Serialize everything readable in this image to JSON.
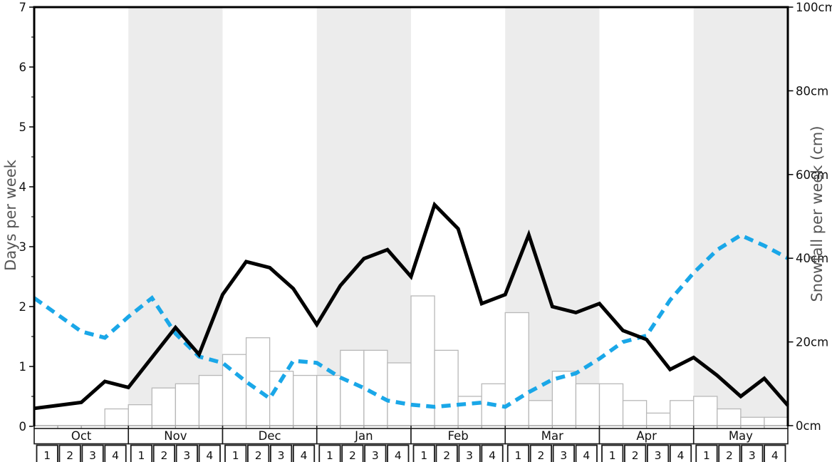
{
  "chart_data": {
    "type": "bar+line",
    "title": "",
    "left_axis": {
      "label": "Days per week",
      "min": 0,
      "max": 7,
      "tick_labels": [
        "0",
        "1",
        "2",
        "3",
        "4",
        "5",
        "6",
        "7"
      ]
    },
    "right_axis": {
      "label": "Snowfall per week (cm)",
      "min": 0,
      "max": 100,
      "tick_labels": [
        "0cm",
        "20cm",
        "40cm",
        "60cm",
        "80cm",
        "100cm"
      ]
    },
    "x_axis": {
      "months": [
        "Oct",
        "Nov",
        "Dec",
        "Jan",
        "Feb",
        "Mar",
        "Apr",
        "May"
      ],
      "weeks": [
        "1",
        "2",
        "3",
        "4"
      ],
      "shaded_months": [
        "Nov",
        "Jan",
        "Mar",
        "May"
      ]
    },
    "series": [
      {
        "name": "snowfall-per-week-bars",
        "type": "bar",
        "axis": "right",
        "unit": "cm",
        "values": [
          0,
          0,
          0,
          4,
          5,
          9,
          10,
          12,
          17,
          21,
          13,
          12,
          12,
          18,
          18,
          15,
          31,
          18,
          7,
          10,
          27,
          6,
          13,
          10,
          10,
          6,
          3,
          6,
          7,
          4,
          2,
          2
        ]
      },
      {
        "name": "snowy-days-per-week-line",
        "type": "line",
        "axis": "left",
        "unit": "days",
        "dash": "solid",
        "values": [
          0.3,
          0.35,
          0.4,
          0.75,
          0.65,
          1.15,
          1.65,
          1.2,
          2.2,
          2.75,
          2.65,
          2.3,
          1.7,
          2.35,
          2.8,
          2.95,
          2.5,
          3.7,
          3.3,
          2.05,
          2.2,
          3.2,
          2.0,
          1.9,
          2.05,
          1.6,
          1.45,
          0.95,
          1.15,
          0.85,
          0.5,
          0.8,
          0.35
        ]
      },
      {
        "name": "snowfall-trend-line",
        "type": "line",
        "axis": "right",
        "unit": "cm",
        "dash": "dashed",
        "values": [
          30.5,
          26.5,
          22.5,
          21,
          26,
          30.5,
          22,
          16.5,
          15,
          10.5,
          6.5,
          15.5,
          15,
          11.5,
          9,
          6,
          5,
          4.5,
          5,
          5.5,
          4.5,
          8,
          11,
          12.5,
          16,
          20,
          21.5,
          30,
          36.5,
          42,
          45.5,
          43,
          40
        ]
      }
    ],
    "colors": {
      "band": "#ececec",
      "bar_fill": "#ffffff",
      "bar_stroke": "#b8b8b8",
      "black_line": "#000000",
      "blue_line": "#1aa7e8",
      "axis_title": "#555555",
      "tick_text": "#111111",
      "table_border": "#1a1a1a",
      "bottom_spine": "#aaaaaa",
      "week_tick": "#999999"
    }
  }
}
